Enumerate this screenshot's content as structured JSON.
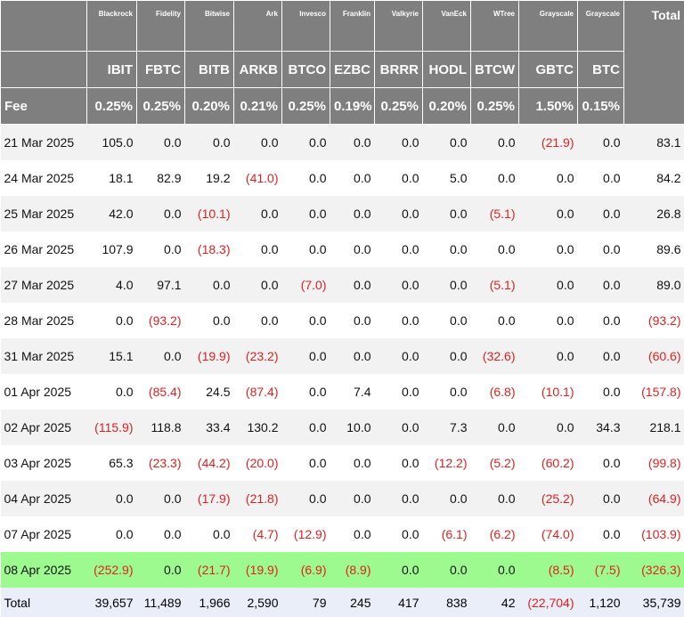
{
  "table": {
    "header": {
      "issuers": [
        "Blackrock",
        "Fidelity",
        "Bitwise",
        "Ark",
        "Invesco",
        "Franklin",
        "Valkyrie",
        "VanEck",
        "WTree",
        "Grayscale",
        "Grayscale"
      ],
      "total_label": "Total",
      "tickers": [
        "IBIT",
        "FBTC",
        "BITB",
        "ARKB",
        "BTCO",
        "EZBC",
        "BRRR",
        "HODL",
        "BTCW",
        "GBTC",
        "BTC"
      ],
      "fee_label": "Fee",
      "fees": [
        "0.25%",
        "0.25%",
        "0.20%",
        "0.21%",
        "0.25%",
        "0.19%",
        "0.25%",
        "0.20%",
        "0.25%",
        "1.50%",
        "0.15%"
      ]
    },
    "rows": [
      {
        "date": "21 Mar 2025",
        "values": [
          "105.0",
          "0.0",
          "0.0",
          "0.0",
          "0.0",
          "0.0",
          "0.0",
          "0.0",
          "0.0",
          "(21.9)",
          "0.0",
          "83.1"
        ]
      },
      {
        "date": "24 Mar 2025",
        "values": [
          "18.1",
          "82.9",
          "19.2",
          "(41.0)",
          "0.0",
          "0.0",
          "0.0",
          "5.0",
          "0.0",
          "0.0",
          "0.0",
          "84.2"
        ]
      },
      {
        "date": "25 Mar 2025",
        "values": [
          "42.0",
          "0.0",
          "(10.1)",
          "0.0",
          "0.0",
          "0.0",
          "0.0",
          "0.0",
          "(5.1)",
          "0.0",
          "0.0",
          "26.8"
        ]
      },
      {
        "date": "26 Mar 2025",
        "values": [
          "107.9",
          "0.0",
          "(18.3)",
          "0.0",
          "0.0",
          "0.0",
          "0.0",
          "0.0",
          "0.0",
          "0.0",
          "0.0",
          "89.6"
        ]
      },
      {
        "date": "27 Mar 2025",
        "values": [
          "4.0",
          "97.1",
          "0.0",
          "0.0",
          "(7.0)",
          "0.0",
          "0.0",
          "0.0",
          "(5.1)",
          "0.0",
          "0.0",
          "89.0"
        ]
      },
      {
        "date": "28 Mar 2025",
        "values": [
          "0.0",
          "(93.2)",
          "0.0",
          "0.0",
          "0.0",
          "0.0",
          "0.0",
          "0.0",
          "0.0",
          "0.0",
          "0.0",
          "(93.2)"
        ]
      },
      {
        "date": "31 Mar 2025",
        "values": [
          "15.1",
          "0.0",
          "(19.9)",
          "(23.2)",
          "0.0",
          "0.0",
          "0.0",
          "0.0",
          "(32.6)",
          "0.0",
          "0.0",
          "(60.6)"
        ]
      },
      {
        "date": "01 Apr 2025",
        "values": [
          "0.0",
          "(85.4)",
          "24.5",
          "(87.4)",
          "0.0",
          "7.4",
          "0.0",
          "0.0",
          "(6.8)",
          "(10.1)",
          "0.0",
          "(157.8)"
        ]
      },
      {
        "date": "02 Apr 2025",
        "values": [
          "(115.9)",
          "118.8",
          "33.4",
          "130.2",
          "0.0",
          "10.0",
          "0.0",
          "7.3",
          "0.0",
          "0.0",
          "34.3",
          "218.1"
        ]
      },
      {
        "date": "03 Apr 2025",
        "values": [
          "65.3",
          "(23.3)",
          "(44.2)",
          "(20.0)",
          "0.0",
          "0.0",
          "0.0",
          "(12.2)",
          "(5.2)",
          "(60.2)",
          "0.0",
          "(99.8)"
        ]
      },
      {
        "date": "04 Apr 2025",
        "values": [
          "0.0",
          "0.0",
          "(17.9)",
          "(21.8)",
          "0.0",
          "0.0",
          "0.0",
          "0.0",
          "0.0",
          "(25.2)",
          "0.0",
          "(64.9)"
        ]
      },
      {
        "date": "07 Apr 2025",
        "values": [
          "0.0",
          "0.0",
          "0.0",
          "(4.7)",
          "(12.9)",
          "0.0",
          "0.0",
          "(6.1)",
          "(6.2)",
          "(74.0)",
          "0.0",
          "(103.9)"
        ]
      },
      {
        "date": "08 Apr 2025",
        "highlight": "#9cfa8e",
        "values": [
          "(252.9)",
          "0.0",
          "(21.7)",
          "(19.9)",
          "(6.9)",
          "(8.9)",
          "0.0",
          "0.0",
          "0.0",
          "(8.5)",
          "(7.5)",
          "(326.3)"
        ]
      }
    ],
    "total_row": {
      "label": "Total",
      "values": [
        "39,657",
        "11,489",
        "1,966",
        "2,590",
        "79",
        "245",
        "417",
        "838",
        "42",
        "(22,704)",
        "1,120",
        "35,739"
      ]
    }
  }
}
